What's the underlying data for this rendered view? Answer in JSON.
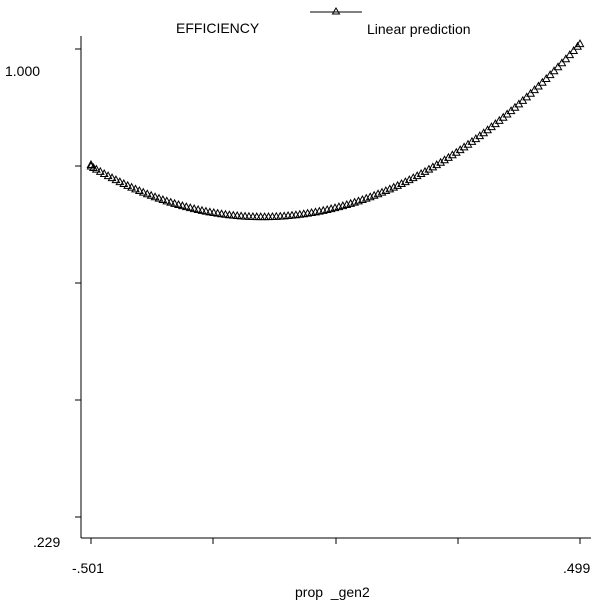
{
  "chart_data": {
    "type": "scatter",
    "title": "",
    "ylabel": "EFFICIENCY",
    "xlabel": "prop  _gen2",
    "xlim": [
      -0.501,
      0.499
    ],
    "ylim": [
      0.229,
      1.0
    ],
    "x_tick_labels": [
      "-.501",
      ".499"
    ],
    "y_tick_labels": [
      "1.000",
      ".229"
    ],
    "marker": "triangle-open",
    "legend_placement": "top",
    "series": [
      {
        "name": "Linear prediction",
        "curve": {
          "x_min": -0.15,
          "y_min": 0.723,
          "y_at_x_max": 1.008,
          "y_at_x_min": 0.792
        },
        "x": [
          -0.501,
          -0.496,
          -0.49,
          -0.482,
          -0.474,
          -0.466,
          -0.458,
          -0.45,
          -0.442,
          -0.434,
          -0.426,
          -0.418,
          -0.41,
          -0.402,
          -0.394,
          -0.386,
          -0.378,
          -0.37,
          -0.362,
          -0.354,
          -0.346,
          -0.338,
          -0.33,
          -0.322,
          -0.314,
          -0.306,
          -0.298,
          -0.29,
          -0.282,
          -0.274,
          -0.266,
          -0.258,
          -0.25,
          -0.242,
          -0.234,
          -0.226,
          -0.218,
          -0.21,
          -0.202,
          -0.194,
          -0.186,
          -0.178,
          -0.17,
          -0.162,
          -0.154,
          -0.146,
          -0.138,
          -0.13,
          -0.122,
          -0.114,
          -0.106,
          -0.098,
          -0.09,
          -0.082,
          -0.074,
          -0.066,
          -0.058,
          -0.05,
          -0.042,
          -0.034,
          -0.026,
          -0.018,
          -0.01,
          -0.002,
          0.006,
          0.014,
          0.022,
          0.03,
          0.038,
          0.046,
          0.054,
          0.062,
          0.07,
          0.078,
          0.086,
          0.094,
          0.102,
          0.11,
          0.118,
          0.126,
          0.134,
          0.142,
          0.15,
          0.158,
          0.166,
          0.174,
          0.182,
          0.19,
          0.198,
          0.206,
          0.214,
          0.222,
          0.23,
          0.238,
          0.246,
          0.254,
          0.262,
          0.27,
          0.278,
          0.286,
          0.294,
          0.302,
          0.31,
          0.318,
          0.326,
          0.334,
          0.342,
          0.35,
          0.358,
          0.366,
          0.374,
          0.382,
          0.39,
          0.398,
          0.406,
          0.414,
          0.422,
          0.43,
          0.438,
          0.446,
          0.454,
          0.462,
          0.47,
          0.478,
          0.486,
          0.494,
          0.499
        ]
      }
    ],
    "outliers": [
      {
        "x": -0.501,
        "y": 0.809
      }
    ]
  }
}
